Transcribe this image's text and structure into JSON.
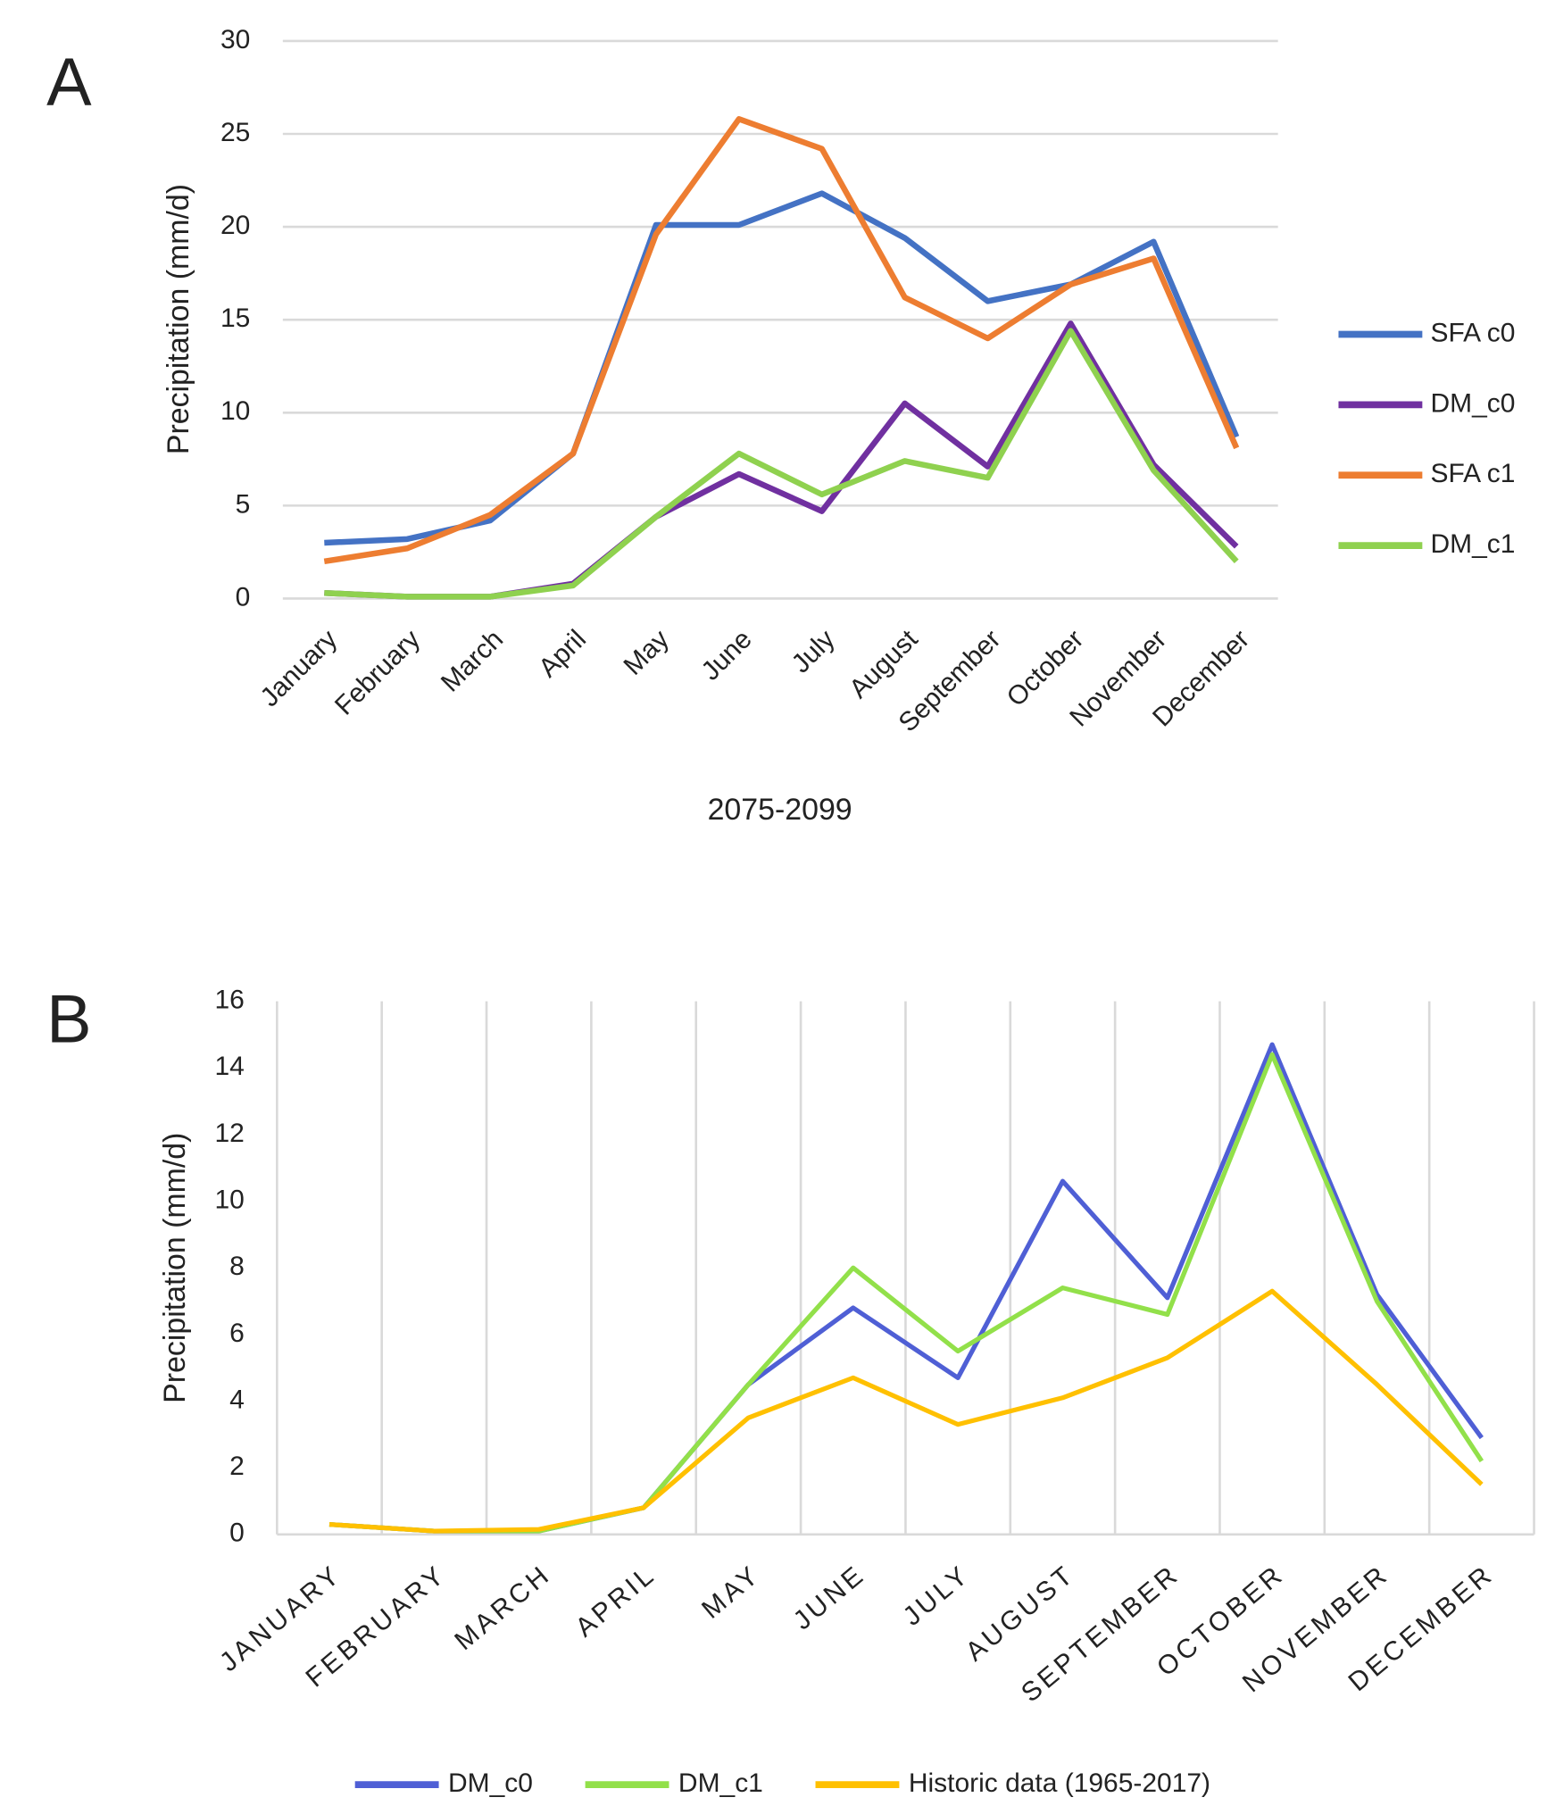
{
  "chart_data": [
    {
      "type": "line",
      "panel_label": "A",
      "ylabel": "Precipitation  (mm/d)",
      "xlabel": "2075-2099",
      "categories": [
        "January",
        "February",
        "March",
        "April",
        "May",
        "June",
        "July",
        "August",
        "September",
        "October",
        "November",
        "December"
      ],
      "series": [
        {
          "name": "SFA c0",
          "color": "#4472c4",
          "values": [
            3.0,
            3.2,
            4.2,
            7.8,
            20.1,
            20.1,
            21.8,
            19.4,
            16.0,
            16.9,
            19.2,
            8.7
          ]
        },
        {
          "name": "DM_c0",
          "color": "#7030a0",
          "values": [
            0.3,
            0.1,
            0.1,
            0.8,
            4.4,
            6.7,
            4.7,
            10.5,
            7.1,
            14.8,
            7.2,
            2.8
          ]
        },
        {
          "name": "SFA c1",
          "color": "#ed7d31",
          "values": [
            2.0,
            2.7,
            4.5,
            7.8,
            19.6,
            25.8,
            24.2,
            16.2,
            14.0,
            16.9,
            18.3,
            8.1
          ]
        },
        {
          "name": "DM_c1",
          "color": "#8fd14f",
          "values": [
            0.3,
            0.1,
            0.1,
            0.7,
            4.4,
            7.8,
            5.6,
            7.4,
            6.5,
            14.4,
            6.9,
            2.0
          ]
        }
      ],
      "ylim": [
        0,
        30
      ],
      "yticks": [
        0,
        5,
        10,
        15,
        20,
        25,
        30
      ],
      "grid": "y",
      "legend": "right"
    },
    {
      "type": "line",
      "panel_label": "B",
      "ylabel": "Precipitation (mm/d)",
      "categories": [
        "JANUARY",
        "FEBRUARY",
        "MARCH",
        "APRIL",
        "MAY",
        "JUNE",
        "JULY",
        "AUGUST",
        "SEPTEMBER",
        "OCTOBER",
        "NOVEMBER",
        "DECEMBER"
      ],
      "series": [
        {
          "name": "DM_c0",
          "color": "#4f5fd5",
          "values": [
            0.3,
            0.1,
            0.1,
            0.8,
            4.5,
            6.8,
            4.7,
            10.6,
            7.1,
            14.7,
            7.2,
            2.9
          ]
        },
        {
          "name": "DM_c1",
          "color": "#92e04a",
          "values": [
            0.3,
            0.1,
            0.1,
            0.8,
            4.5,
            8.0,
            5.5,
            7.4,
            6.6,
            14.4,
            7.0,
            2.2
          ]
        },
        {
          "name": "Historic data (1965-2017)",
          "color": "#ffc000",
          "values": [
            0.3,
            0.1,
            0.15,
            0.8,
            3.5,
            4.7,
            3.3,
            4.1,
            5.3,
            7.3,
            4.5,
            1.5
          ]
        }
      ],
      "ylim": [
        0,
        16
      ],
      "yticks": [
        0,
        2,
        4,
        6,
        8,
        10,
        12,
        14,
        16
      ],
      "grid": "x",
      "legend": "bottom"
    }
  ]
}
